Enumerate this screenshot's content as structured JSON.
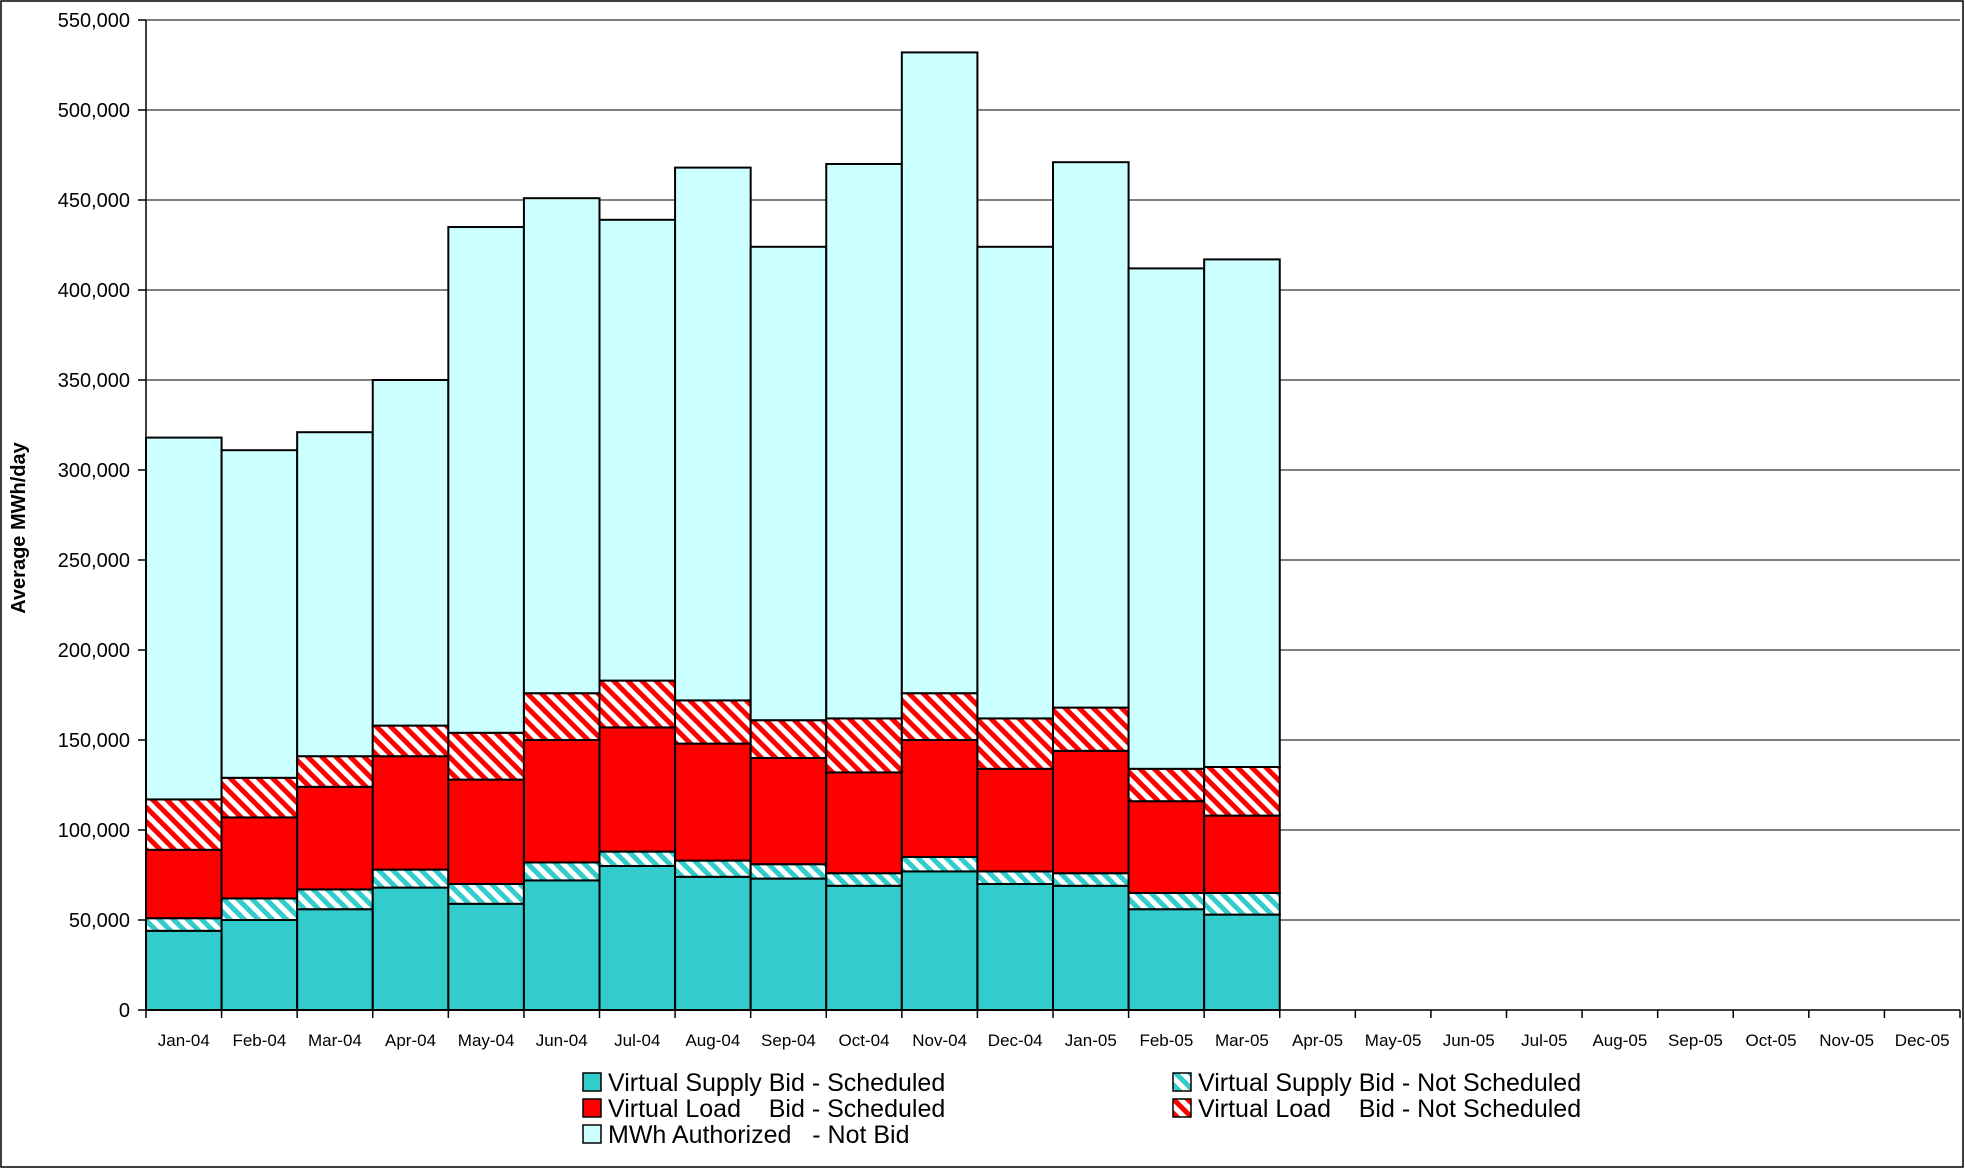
{
  "chart_data": {
    "type": "bar",
    "stacked": true,
    "title": "",
    "xlabel": "",
    "ylabel": "Average MWh/day",
    "ylim": [
      0,
      550000
    ],
    "ytick_step": 50000,
    "yticks": [
      "0",
      "50,000",
      "100,000",
      "150,000",
      "200,000",
      "250,000",
      "300,000",
      "350,000",
      "400,000",
      "450,000",
      "500,000",
      "550,000"
    ],
    "grid": true,
    "legend_position": "bottom",
    "categories": [
      "Jan-04",
      "Feb-04",
      "Mar-04",
      "Apr-04",
      "May-04",
      "Jun-04",
      "Jul-04",
      "Aug-04",
      "Sep-04",
      "Oct-04",
      "Nov-04",
      "Dec-04",
      "Jan-05",
      "Feb-05",
      "Mar-05",
      "Apr-05",
      "May-05",
      "Jun-05",
      "Jul-05",
      "Aug-05",
      "Sep-05",
      "Oct-05",
      "Nov-05",
      "Dec-05"
    ],
    "series": [
      {
        "name": "Virtual Supply Bid - Scheduled",
        "color": "#33cccc",
        "pattern": "solid",
        "values": [
          44000,
          50000,
          56000,
          68000,
          59000,
          72000,
          80000,
          74000,
          73000,
          69000,
          77000,
          70000,
          69000,
          56000,
          53000,
          null,
          null,
          null,
          null,
          null,
          null,
          null,
          null,
          null
        ]
      },
      {
        "name": "Virtual Supply Bid - Not Scheduled",
        "color": "#33cccc",
        "pattern": "hatch",
        "values": [
          7000,
          12000,
          11000,
          10000,
          11000,
          10000,
          8000,
          9000,
          8000,
          7000,
          8000,
          7000,
          7000,
          9000,
          12000,
          null,
          null,
          null,
          null,
          null,
          null,
          null,
          null,
          null
        ]
      },
      {
        "name": "Virtual Load    Bid - Scheduled",
        "color": "#ff0000",
        "pattern": "solid",
        "values": [
          38000,
          45000,
          57000,
          63000,
          58000,
          68000,
          69000,
          65000,
          59000,
          56000,
          65000,
          57000,
          68000,
          51000,
          43000,
          null,
          null,
          null,
          null,
          null,
          null,
          null,
          null,
          null
        ]
      },
      {
        "name": "Virtual Load    Bid - Not Scheduled",
        "color": "#ff0000",
        "pattern": "hatch",
        "values": [
          28000,
          22000,
          17000,
          17000,
          26000,
          26000,
          26000,
          24000,
          21000,
          30000,
          26000,
          28000,
          24000,
          18000,
          27000,
          null,
          null,
          null,
          null,
          null,
          null,
          null,
          null,
          null
        ]
      },
      {
        "name": "MWh Authorized   - Not Bid",
        "color": "#ccffff",
        "pattern": "solid",
        "values": [
          201000,
          182000,
          180000,
          192000,
          281000,
          275000,
          256000,
          296000,
          263000,
          308000,
          356000,
          262000,
          303000,
          278000,
          282000,
          null,
          null,
          null,
          null,
          null,
          null,
          null,
          null,
          null
        ]
      }
    ]
  }
}
